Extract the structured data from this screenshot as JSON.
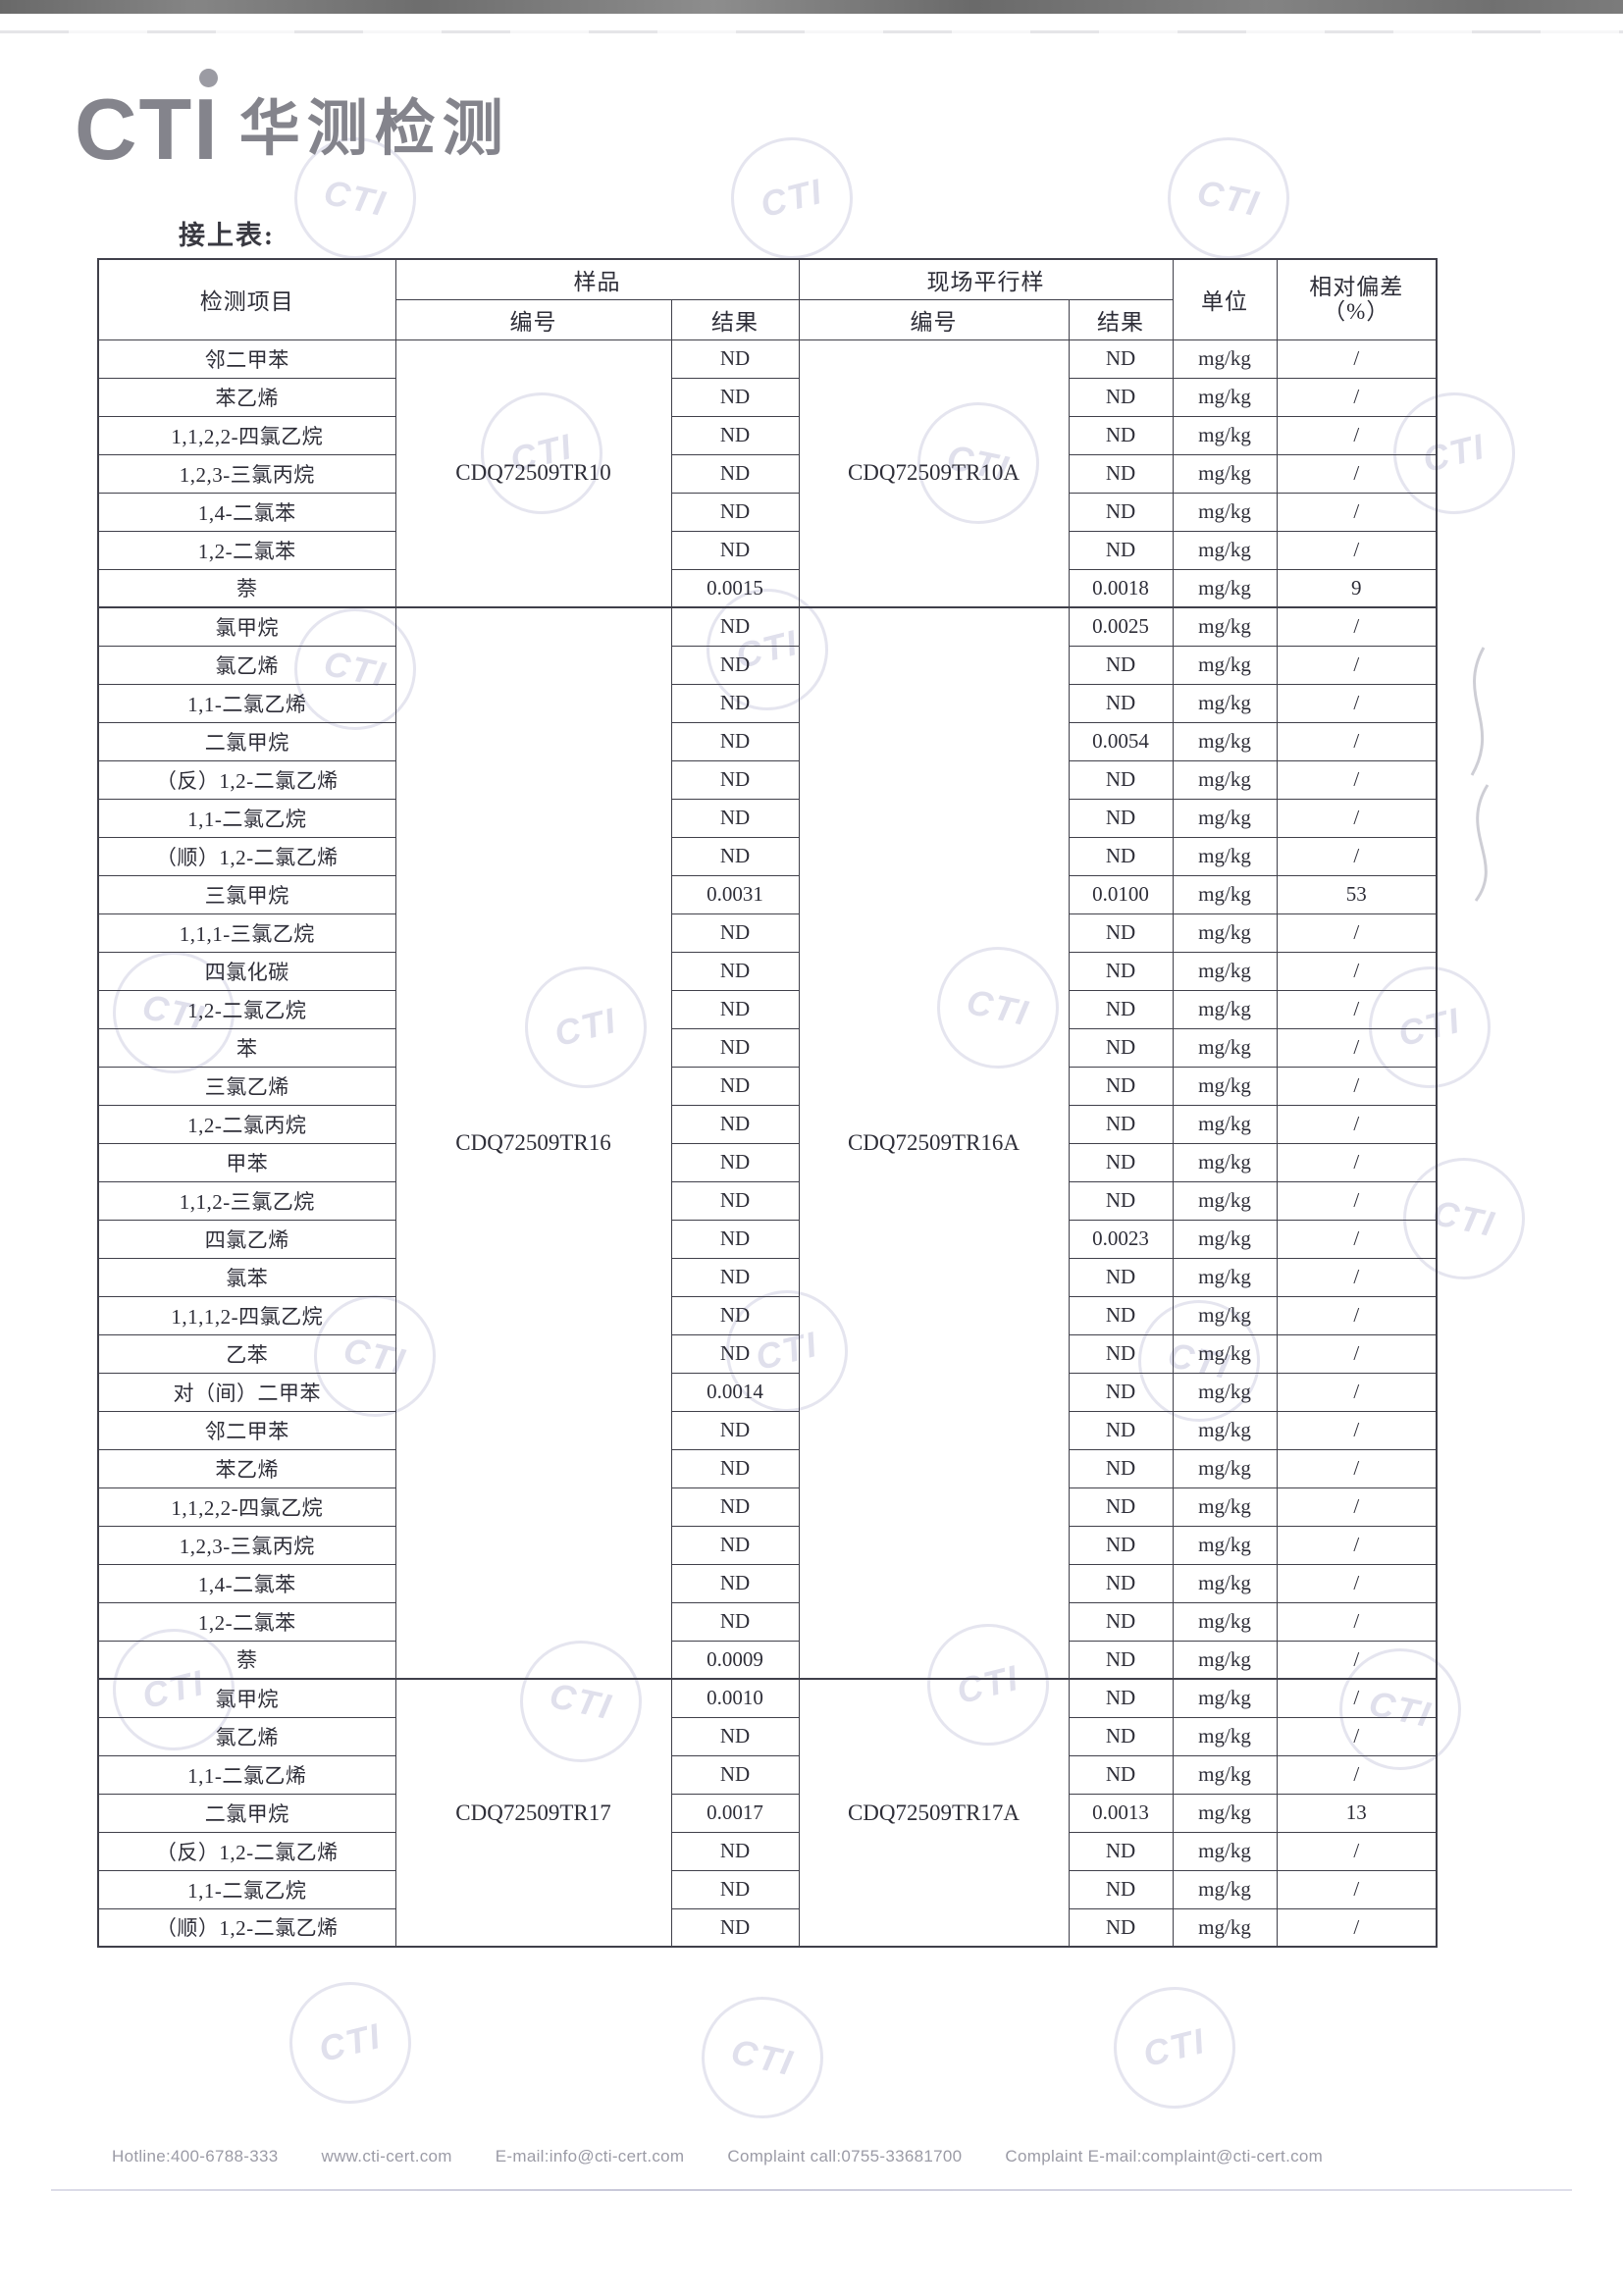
{
  "page": {
    "logo_text": "CTI",
    "logo_cn": "华测检测",
    "logo_color": "#84848c",
    "continuation_label": "接上表:",
    "watermark": "CTI"
  },
  "table": {
    "unit": "mg/kg",
    "headers": {
      "item": "检测项目",
      "sample_group": "样品",
      "parallel_group": "现场平行样",
      "no": "编号",
      "result": "结果",
      "unit": "单位",
      "deviation_line1": "相对偏差",
      "deviation_line2": "（%）"
    },
    "blocks": [
      {
        "sample_id": "CDQ72509TR10",
        "parallel_id": "CDQ72509TR10A",
        "rows": [
          {
            "item": "邻二甲苯",
            "sample": "ND",
            "parallel": "ND",
            "dev": "/"
          },
          {
            "item": "苯乙烯",
            "sample": "ND",
            "parallel": "ND",
            "dev": "/"
          },
          {
            "item": "1,1,2,2-四氯乙烷",
            "sample": "ND",
            "parallel": "ND",
            "dev": "/"
          },
          {
            "item": "1,2,3-三氯丙烷",
            "sample": "ND",
            "parallel": "ND",
            "dev": "/"
          },
          {
            "item": "1,4-二氯苯",
            "sample": "ND",
            "parallel": "ND",
            "dev": "/"
          },
          {
            "item": "1,2-二氯苯",
            "sample": "ND",
            "parallel": "ND",
            "dev": "/"
          },
          {
            "item": "萘",
            "sample": "0.0015",
            "parallel": "0.0018",
            "dev": "9"
          }
        ]
      },
      {
        "sample_id": "CDQ72509TR16",
        "parallel_id": "CDQ72509TR16A",
        "rows": [
          {
            "item": "氯甲烷",
            "sample": "ND",
            "parallel": "0.0025",
            "dev": "/"
          },
          {
            "item": "氯乙烯",
            "sample": "ND",
            "parallel": "ND",
            "dev": "/"
          },
          {
            "item": "1,1-二氯乙烯",
            "sample": "ND",
            "parallel": "ND",
            "dev": "/"
          },
          {
            "item": "二氯甲烷",
            "sample": "ND",
            "parallel": "0.0054",
            "dev": "/"
          },
          {
            "item": "（反）1,2-二氯乙烯",
            "sample": "ND",
            "parallel": "ND",
            "dev": "/"
          },
          {
            "item": "1,1-二氯乙烷",
            "sample": "ND",
            "parallel": "ND",
            "dev": "/"
          },
          {
            "item": "（顺）1,2-二氯乙烯",
            "sample": "ND",
            "parallel": "ND",
            "dev": "/"
          },
          {
            "item": "三氯甲烷",
            "sample": "0.0031",
            "parallel": "0.0100",
            "dev": "53"
          },
          {
            "item": "1,1,1-三氯乙烷",
            "sample": "ND",
            "parallel": "ND",
            "dev": "/"
          },
          {
            "item": "四氯化碳",
            "sample": "ND",
            "parallel": "ND",
            "dev": "/"
          },
          {
            "item": "1,2-二氯乙烷",
            "sample": "ND",
            "parallel": "ND",
            "dev": "/"
          },
          {
            "item": "苯",
            "sample": "ND",
            "parallel": "ND",
            "dev": "/"
          },
          {
            "item": "三氯乙烯",
            "sample": "ND",
            "parallel": "ND",
            "dev": "/"
          },
          {
            "item": "1,2-二氯丙烷",
            "sample": "ND",
            "parallel": "ND",
            "dev": "/"
          },
          {
            "item": "甲苯",
            "sample": "ND",
            "parallel": "ND",
            "dev": "/"
          },
          {
            "item": "1,1,2-三氯乙烷",
            "sample": "ND",
            "parallel": "ND",
            "dev": "/"
          },
          {
            "item": "四氯乙烯",
            "sample": "ND",
            "parallel": "0.0023",
            "dev": "/"
          },
          {
            "item": "氯苯",
            "sample": "ND",
            "parallel": "ND",
            "dev": "/"
          },
          {
            "item": "1,1,1,2-四氯乙烷",
            "sample": "ND",
            "parallel": "ND",
            "dev": "/"
          },
          {
            "item": "乙苯",
            "sample": "ND",
            "parallel": "ND",
            "dev": "/"
          },
          {
            "item": "对（间）二甲苯",
            "sample": "0.0014",
            "parallel": "ND",
            "dev": "/"
          },
          {
            "item": "邻二甲苯",
            "sample": "ND",
            "parallel": "ND",
            "dev": "/"
          },
          {
            "item": "苯乙烯",
            "sample": "ND",
            "parallel": "ND",
            "dev": "/"
          },
          {
            "item": "1,1,2,2-四氯乙烷",
            "sample": "ND",
            "parallel": "ND",
            "dev": "/"
          },
          {
            "item": "1,2,3-三氯丙烷",
            "sample": "ND",
            "parallel": "ND",
            "dev": "/"
          },
          {
            "item": "1,4-二氯苯",
            "sample": "ND",
            "parallel": "ND",
            "dev": "/"
          },
          {
            "item": "1,2-二氯苯",
            "sample": "ND",
            "parallel": "ND",
            "dev": "/"
          },
          {
            "item": "萘",
            "sample": "0.0009",
            "parallel": "ND",
            "dev": "/"
          }
        ]
      },
      {
        "sample_id": "CDQ72509TR17",
        "parallel_id": "CDQ72509TR17A",
        "rows": [
          {
            "item": "氯甲烷",
            "sample": "0.0010",
            "parallel": "ND",
            "dev": "/"
          },
          {
            "item": "氯乙烯",
            "sample": "ND",
            "parallel": "ND",
            "dev": "/"
          },
          {
            "item": "1,1-二氯乙烯",
            "sample": "ND",
            "parallel": "ND",
            "dev": "/"
          },
          {
            "item": "二氯甲烷",
            "sample": "0.0017",
            "parallel": "0.0013",
            "dev": "13"
          },
          {
            "item": "（反）1,2-二氯乙烯",
            "sample": "ND",
            "parallel": "ND",
            "dev": "/"
          },
          {
            "item": "1,1-二氯乙烷",
            "sample": "ND",
            "parallel": "ND",
            "dev": "/"
          },
          {
            "item": "（顺）1,2-二氯乙烯",
            "sample": "ND",
            "parallel": "ND",
            "dev": "/"
          }
        ]
      }
    ]
  },
  "footer": {
    "items": [
      "Hotline:400-6788-333",
      "www.cti-cert.com",
      "E-mail:info@cti-cert.com",
      "Complaint call:0755-33681700",
      "Complaint E-mail:complaint@cti-cert.com"
    ]
  }
}
